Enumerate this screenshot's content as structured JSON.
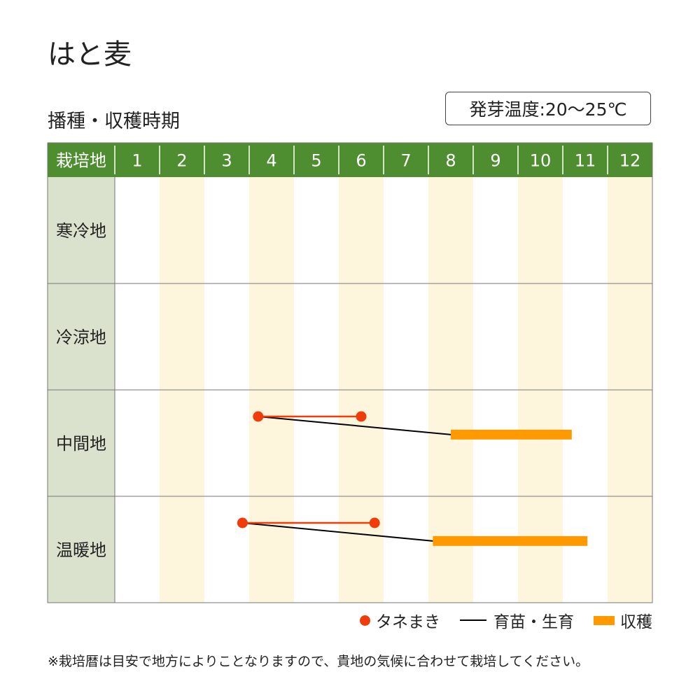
{
  "header": {
    "title": "はと麦",
    "subtitle": "播種・収穫時期",
    "germination_temp": "発芽温度:20～25℃"
  },
  "chart_data": {
    "type": "gantt",
    "corner_label": "栽培地",
    "months": [
      "1",
      "2",
      "3",
      "4",
      "5",
      "6",
      "7",
      "8",
      "9",
      "10",
      "11",
      "12"
    ],
    "regions": [
      "寒冷地",
      "冷涼地",
      "中間地",
      "温暖地"
    ],
    "series": {
      "sowing": {
        "name": "タネまき",
        "color": "#f03c0a"
      },
      "seedling": {
        "name": "育苗・生育",
        "color": "#000000"
      },
      "harvest": {
        "name": "収穫",
        "color": "#ff9900"
      }
    },
    "schedule": [
      {
        "region": "寒冷地",
        "sowing": null,
        "harvest": null
      },
      {
        "region": "冷涼地",
        "sowing": null,
        "harvest": null
      },
      {
        "region": "中間地",
        "sowing": [
          4.2,
          6.5
        ],
        "harvest": [
          8.5,
          11.2
        ]
      },
      {
        "region": "温暖地",
        "sowing": [
          3.85,
          6.8
        ],
        "harvest": [
          8.1,
          11.55
        ]
      }
    ],
    "colors": {
      "header_bg": "#4e8d30",
      "region_bg": "#dae2cd",
      "stripe": "#fdf5dc",
      "grid": "#777777"
    }
  },
  "legend": {
    "sowing_label": "タネまき",
    "seedling_label": "育苗・生育",
    "harvest_label": "収穫"
  },
  "footnote": "※栽培暦は目安で地方によりことなりますので、貴地の気候に合わせて栽培してください。"
}
